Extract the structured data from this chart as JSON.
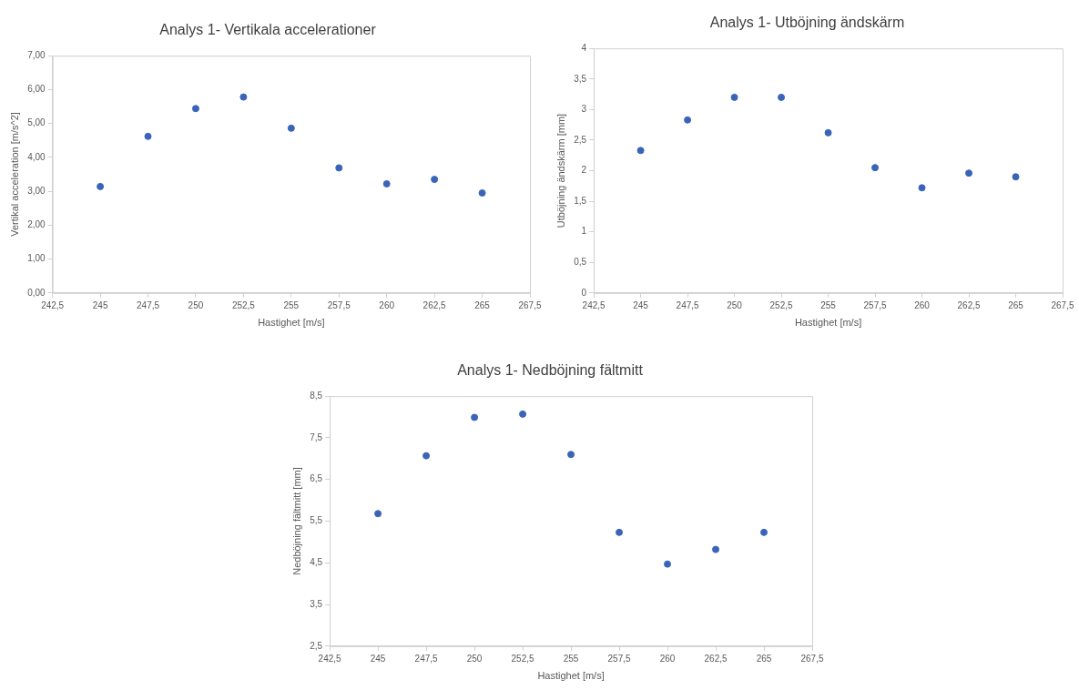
{
  "chart_data": [
    {
      "type": "scatter",
      "title": "Analys 1- Vertikala accelerationer",
      "xlabel": "Hastighet [m/s]",
      "ylabel": "Vertikal acceleration [m/s^2]",
      "x": [
        245,
        247.5,
        250,
        252.5,
        255,
        257.5,
        260,
        262.5,
        265
      ],
      "series": [
        {
          "color": "#3a64b8",
          "values": [
            3.14,
            4.62,
            5.44,
            5.78,
            4.86,
            3.69,
            3.22,
            3.35,
            2.95
          ]
        }
      ],
      "xlim": [
        242.5,
        267.5
      ],
      "xticks": [
        {
          "value": 242.5,
          "label": "242,5"
        },
        245,
        {
          "value": 247.5,
          "label": "247,5"
        },
        250,
        {
          "value": 252.5,
          "label": "252,5"
        },
        255,
        {
          "value": 257.5,
          "label": "257,5"
        },
        260,
        {
          "value": 262.5,
          "label": "262,5"
        },
        265,
        {
          "value": 267.5,
          "label": "267,5"
        }
      ],
      "ylim": [
        0,
        7
      ],
      "yticks": [
        {
          "value": 0,
          "label": "0,00"
        },
        {
          "value": 1,
          "label": "1,00"
        },
        {
          "value": 2,
          "label": "2,00"
        },
        {
          "value": 3,
          "label": "3,00"
        },
        {
          "value": 4,
          "label": "4,00"
        },
        {
          "value": 5,
          "label": "5,00"
        },
        {
          "value": 6,
          "label": "6,00"
        },
        {
          "value": 7,
          "label": "7,00"
        }
      ],
      "grid": false,
      "legend": false,
      "marker": "circle"
    },
    {
      "type": "scatter",
      "title": "Analys 1- Utböjning ändskärm",
      "xlabel": "Hastighet [m/s]",
      "ylabel": "Utböjning ändskärm [mm]",
      "x": [
        245,
        247.5,
        250,
        252.5,
        255,
        257.5,
        260,
        262.5,
        265
      ],
      "series": [
        {
          "color": "#3a64b8",
          "values": [
            2.33,
            2.83,
            3.2,
            3.2,
            2.62,
            2.05,
            1.72,
            1.96,
            1.9
          ]
        }
      ],
      "xlim": [
        242.5,
        267.5
      ],
      "xticks": [
        {
          "value": 242.5,
          "label": "242,5"
        },
        245,
        {
          "value": 247.5,
          "label": "247,5"
        },
        250,
        {
          "value": 252.5,
          "label": "252,5"
        },
        255,
        {
          "value": 257.5,
          "label": "257,5"
        },
        260,
        {
          "value": 262.5,
          "label": "262,5"
        },
        265,
        {
          "value": 267.5,
          "label": "267,5"
        }
      ],
      "ylim": [
        0,
        4
      ],
      "yticks": [
        0,
        {
          "value": 0.5,
          "label": "0,5"
        },
        1,
        {
          "value": 1.5,
          "label": "1,5"
        },
        2,
        {
          "value": 2.5,
          "label": "2,5"
        },
        3,
        {
          "value": 3.5,
          "label": "3,5"
        },
        4
      ],
      "grid": false,
      "legend": false,
      "marker": "circle"
    },
    {
      "type": "scatter",
      "title": "Analys 1- Nedböjning fältmitt",
      "xlabel": "Hastighet [m/s]",
      "ylabel": "Nedböjning fältmitt [mm]",
      "x": [
        245,
        247.5,
        250,
        252.5,
        255,
        257.5,
        260,
        262.5,
        265
      ],
      "series": [
        {
          "color": "#3a64b8",
          "values": [
            5.68,
            7.07,
            7.99,
            8.07,
            7.1,
            5.23,
            4.47,
            4.82,
            5.23
          ]
        }
      ],
      "xlim": [
        242.5,
        267.5
      ],
      "xticks": [
        {
          "value": 242.5,
          "label": "242,5"
        },
        245,
        {
          "value": 247.5,
          "label": "247,5"
        },
        250,
        {
          "value": 252.5,
          "label": "252,5"
        },
        255,
        {
          "value": 257.5,
          "label": "257,5"
        },
        260,
        {
          "value": 262.5,
          "label": "262,5"
        },
        265,
        {
          "value": 267.5,
          "label": "267,5"
        }
      ],
      "ylim": [
        2.5,
        8.5
      ],
      "yticks": [
        {
          "value": 2.5,
          "label": "2,5"
        },
        {
          "value": 3.5,
          "label": "3,5"
        },
        {
          "value": 4.5,
          "label": "4,5"
        },
        {
          "value": 5.5,
          "label": "5,5"
        },
        {
          "value": 6.5,
          "label": "6,5"
        },
        {
          "value": 7.5,
          "label": "7,5"
        },
        {
          "value": 8.5,
          "label": "8,5"
        }
      ],
      "grid": false,
      "legend": false,
      "marker": "circle"
    }
  ]
}
